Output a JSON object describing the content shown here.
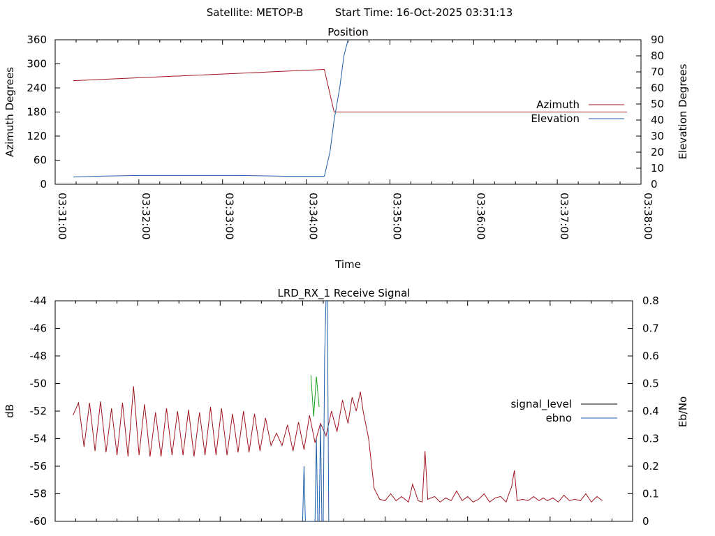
{
  "header": {
    "satellite_label": "Satellite: METOP-B",
    "start_time_label": "Start Time: 16-Oct-2025 03:31:13"
  },
  "chart_data": [
    {
      "id": "position",
      "type": "line",
      "title": "Position",
      "xlabel": "Time",
      "ylabel": "Azimuth Degrees",
      "y2label": "Elevation Degrees",
      "xlim": [
        "03:31:00",
        "03:38:00"
      ],
      "ylim": [
        0,
        360
      ],
      "y2lim": [
        0,
        90
      ],
      "x_tick_labels": [
        "03:31:00",
        "03:32:00",
        "03:33:00",
        "03:34:00",
        "03:35:00",
        "03:36:00",
        "03:37:00",
        "03:38:00"
      ],
      "y_tick_labels": [
        "0",
        "60",
        "120",
        "180",
        "240",
        "300",
        "360"
      ],
      "y2_tick_labels": [
        "0",
        "10",
        "20",
        "30",
        "40",
        "50",
        "60",
        "70",
        "80",
        "90"
      ],
      "legend_position": "right",
      "grid": false,
      "series": [
        {
          "name": "Azimuth",
          "color": "#a0141e",
          "axis": "y",
          "points": [
            [
              "03:31:13",
              258
            ],
            [
              "03:34:13",
              286
            ],
            [
              "03:34:20",
              180
            ],
            [
              "03:37:50",
              180
            ]
          ]
        },
        {
          "name": "Elevation",
          "color": "#1e5ea8",
          "axis": "y2",
          "points": [
            [
              "03:31:13",
              4.5
            ],
            [
              "03:31:30",
              5.0
            ],
            [
              "03:32:00",
              5.5
            ],
            [
              "03:33:10",
              5.5
            ],
            [
              "03:33:45",
              5.0
            ],
            [
              "03:34:13",
              5.0
            ],
            [
              "03:34:17",
              20.0
            ],
            [
              "03:34:20",
              40.0
            ],
            [
              "03:34:24",
              60.0
            ],
            [
              "03:34:27",
              80.0
            ],
            [
              "03:34:30",
              90.0
            ]
          ]
        }
      ]
    },
    {
      "id": "receive-signal",
      "type": "line",
      "title": "LRD_RX_1 Receive Signal",
      "ylabel": "dB",
      "y2label": "Eb/No",
      "xlim": [
        "03:31:00",
        "03:38:00"
      ],
      "ylim": [
        -60,
        -44
      ],
      "y2lim": [
        0,
        0.8
      ],
      "y_tick_labels": [
        "-60",
        "-58",
        "-56",
        "-54",
        "-52",
        "-50",
        "-48",
        "-46",
        "-44"
      ],
      "y2_tick_labels": [
        "0",
        "0.1",
        "0.2",
        "0.3",
        "0.4",
        "0.5",
        "0.6",
        "0.7",
        "0.8"
      ],
      "legend_position": "right",
      "grid": false,
      "series": [
        {
          "name": "signal_level",
          "legend_color": "#000000",
          "color": "#a0141e",
          "axis": "y",
          "points": [
            [
              "03:31:13",
              -52.3
            ],
            [
              "03:31:17",
              -51.4
            ],
            [
              "03:31:21",
              -54.6
            ],
            [
              "03:31:25",
              -51.4
            ],
            [
              "03:31:29",
              -54.9
            ],
            [
              "03:31:33",
              -51.3
            ],
            [
              "03:31:37",
              -55.0
            ],
            [
              "03:31:41",
              -51.8
            ],
            [
              "03:31:45",
              -55.2
            ],
            [
              "03:31:49",
              -51.4
            ],
            [
              "03:31:53",
              -55.3
            ],
            [
              "03:31:57",
              -50.2
            ],
            [
              "03:32:01",
              -55.2
            ],
            [
              "03:32:05",
              -51.5
            ],
            [
              "03:32:09",
              -55.3
            ],
            [
              "03:32:13",
              -52.1
            ],
            [
              "03:32:17",
              -55.3
            ],
            [
              "03:32:21",
              -51.8
            ],
            [
              "03:32:25",
              -55.2
            ],
            [
              "03:32:29",
              -52.0
            ],
            [
              "03:32:33",
              -55.2
            ],
            [
              "03:32:37",
              -51.9
            ],
            [
              "03:32:41",
              -55.3
            ],
            [
              "03:32:45",
              -52.1
            ],
            [
              "03:32:49",
              -55.2
            ],
            [
              "03:32:53",
              -51.7
            ],
            [
              "03:32:57",
              -55.2
            ],
            [
              "03:33:01",
              -51.8
            ],
            [
              "03:33:05",
              -55.2
            ],
            [
              "03:33:09",
              -52.2
            ],
            [
              "03:33:13",
              -55.0
            ],
            [
              "03:33:17",
              -52.0
            ],
            [
              "03:33:21",
              -55.0
            ],
            [
              "03:33:25",
              -52.2
            ],
            [
              "03:33:29",
              -54.9
            ],
            [
              "03:33:33",
              -52.5
            ],
            [
              "03:33:37",
              -54.5
            ],
            [
              "03:33:41",
              -53.6
            ],
            [
              "03:33:45",
              -54.5
            ],
            [
              "03:33:49",
              -53.0
            ],
            [
              "03:33:53",
              -54.9
            ],
            [
              "03:33:57",
              -52.8
            ],
            [
              "03:34:01",
              -54.8
            ],
            [
              "03:34:05",
              -52.3
            ],
            [
              "03:34:09",
              -54.3
            ],
            [
              "03:34:13",
              -52.9
            ],
            [
              "03:34:17",
              -53.8
            ],
            [
              "03:34:21",
              -52.0
            ],
            [
              "03:34:25",
              -53.5
            ],
            [
              "03:34:29",
              -51.2
            ],
            [
              "03:34:33",
              -52.9
            ],
            [
              "03:34:36",
              -51.0
            ],
            [
              "03:34:39",
              -52.0
            ],
            [
              "03:34:42",
              -50.6
            ],
            [
              "03:34:44",
              -52.0
            ],
            [
              "03:34:48",
              -54.0
            ],
            [
              "03:34:52",
              -57.6
            ],
            [
              "03:34:56",
              -58.4
            ],
            [
              "03:35:00",
              -58.5
            ],
            [
              "03:35:04",
              -58.0
            ],
            [
              "03:35:08",
              -58.5
            ],
            [
              "03:35:12",
              -58.2
            ],
            [
              "03:35:17",
              -58.6
            ],
            [
              "03:35:20",
              -57.3
            ],
            [
              "03:35:24",
              -58.5
            ],
            [
              "03:35:27",
              -58.6
            ],
            [
              "03:35:29",
              -54.9
            ],
            [
              "03:35:31",
              -58.4
            ],
            [
              "03:35:36",
              -58.2
            ],
            [
              "03:35:40",
              -58.6
            ],
            [
              "03:35:44",
              -58.3
            ],
            [
              "03:35:48",
              -58.5
            ],
            [
              "03:35:52",
              -57.8
            ],
            [
              "03:35:56",
              -58.5
            ],
            [
              "03:36:00",
              -58.2
            ],
            [
              "03:36:04",
              -58.6
            ],
            [
              "03:36:08",
              -58.4
            ],
            [
              "03:36:12",
              -58.0
            ],
            [
              "03:36:16",
              -58.6
            ],
            [
              "03:36:20",
              -58.3
            ],
            [
              "03:36:24",
              -58.2
            ],
            [
              "03:36:28",
              -58.6
            ],
            [
              "03:36:30",
              -58.0
            ],
            [
              "03:36:32",
              -57.5
            ],
            [
              "03:36:34",
              -56.3
            ],
            [
              "03:36:36",
              -58.5
            ],
            [
              "03:36:40",
              -58.4
            ],
            [
              "03:36:44",
              -58.5
            ],
            [
              "03:36:48",
              -58.2
            ],
            [
              "03:36:52",
              -58.5
            ],
            [
              "03:36:55",
              -58.3
            ],
            [
              "03:36:58",
              -58.5
            ],
            [
              "03:37:02",
              -58.3
            ],
            [
              "03:37:06",
              -58.6
            ],
            [
              "03:37:10",
              -58.1
            ],
            [
              "03:37:14",
              -58.5
            ],
            [
              "03:37:18",
              -58.4
            ],
            [
              "03:37:22",
              -58.5
            ],
            [
              "03:37:26",
              -58.0
            ],
            [
              "03:37:30",
              -58.6
            ],
            [
              "03:37:34",
              -58.2
            ],
            [
              "03:37:38",
              -58.5
            ]
          ]
        },
        {
          "name": "ebno",
          "color": "#1e5ea8",
          "axis": "y2",
          "points": [
            [
              "03:34:00",
              0.0
            ],
            [
              "03:34:01",
              0.2
            ],
            [
              "03:34:02",
              0.0
            ],
            [
              "03:34:09",
              0.0
            ],
            [
              "03:34:10",
              0.3
            ],
            [
              "03:34:11",
              0.0
            ],
            [
              "03:34:12",
              0.0
            ],
            [
              "03:34:13",
              0.35
            ],
            [
              "03:34:14",
              0.0
            ],
            [
              "03:34:15",
              0.0
            ],
            [
              "03:34:16",
              0.6
            ],
            [
              "03:34:17",
              0.8
            ],
            [
              "03:34:18",
              0.8
            ],
            [
              "03:34:19",
              0.0
            ]
          ]
        },
        {
          "name": "",
          "color": "#14a01e",
          "axis": "y",
          "points": [
            [
              "03:34:06",
              -49.4
            ],
            [
              "03:34:08",
              -52.4
            ],
            [
              "03:34:10",
              -49.5
            ],
            [
              "03:34:12",
              -51.7
            ]
          ]
        }
      ]
    }
  ]
}
